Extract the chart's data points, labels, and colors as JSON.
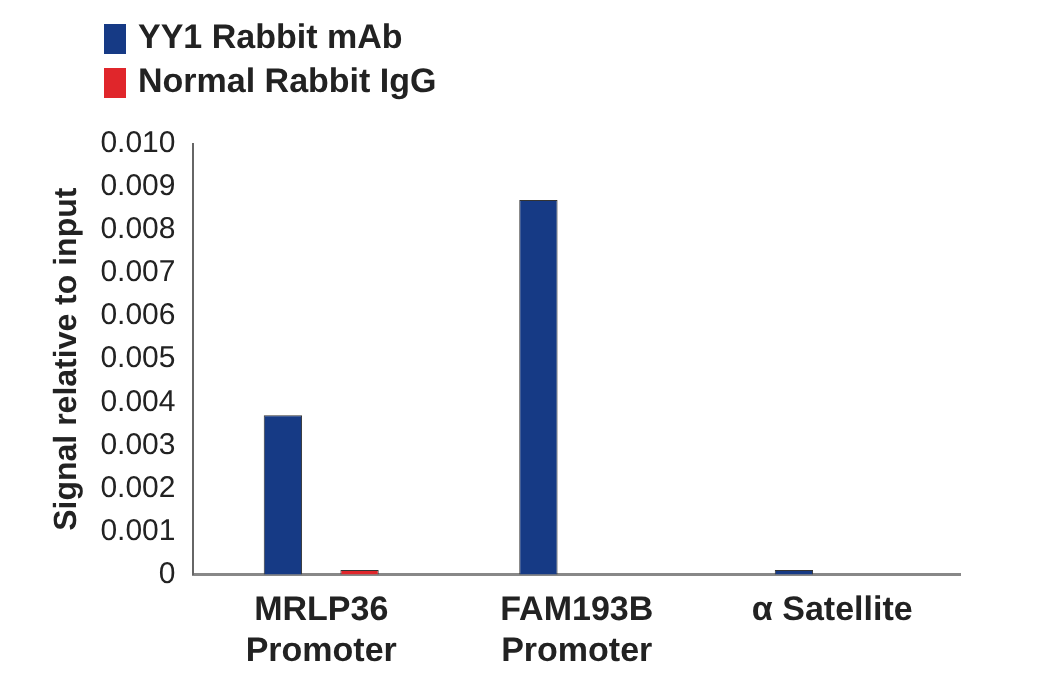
{
  "chart_data": {
    "type": "bar",
    "ylabel": "Signal relative to input",
    "categories": [
      "MRLP36\nPromoter",
      "FAM193B\nPromoter",
      "α Satellite"
    ],
    "series": [
      {
        "name": "YY1 Rabbit mAb",
        "color": "#163a85",
        "values": [
          0.0037,
          0.0087,
          0.0001
        ]
      },
      {
        "name": "Normal Rabbit IgG",
        "color": "#e0262b",
        "values": [
          0.0001,
          0,
          0
        ]
      }
    ],
    "ylim": [
      0,
      0.01
    ],
    "yticks": [
      0,
      0.001,
      0.002,
      0.003,
      0.004,
      0.005,
      0.006,
      0.007,
      0.008,
      0.009,
      {
        "value": 0.01,
        "label": "0.010"
      }
    ],
    "grid": false,
    "legend": "top left"
  }
}
